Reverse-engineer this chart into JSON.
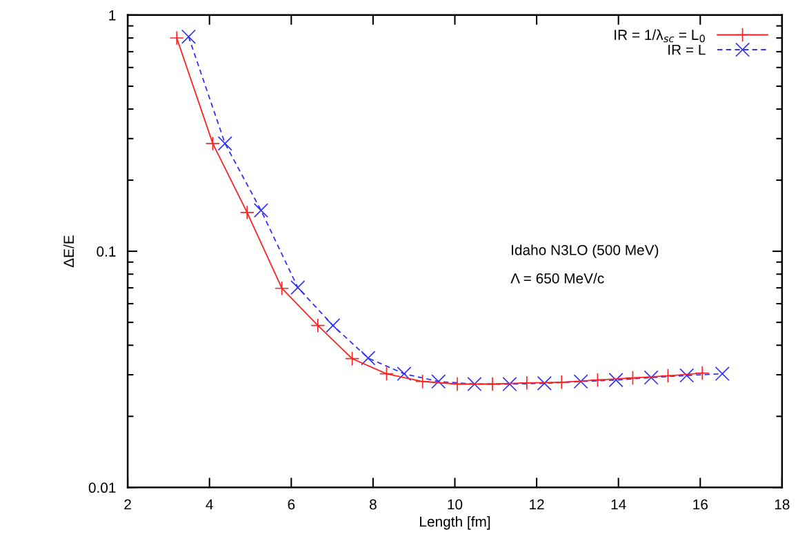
{
  "chart_data": {
    "type": "line",
    "xlabel": "Length [fm]",
    "ylabel": "ΔE/E",
    "annotations": [
      "Idaho N3LO (500 MeV)",
      "Λ = 650 MeV/c"
    ],
    "series": [
      {
        "name": "IR = 1/λ$_{sc}$ = L$_{0}$",
        "color": "#ff2020",
        "marker": "plus",
        "line_style": "solid",
        "x": [
          3.2,
          4.08,
          4.92,
          5.77,
          6.65,
          7.49,
          8.33,
          9.21,
          10.06,
          10.92,
          11.76,
          12.61,
          13.49,
          14.35,
          15.21,
          16.05
        ],
        "values": [
          0.8,
          0.286,
          0.146,
          0.0697,
          0.0485,
          0.0351,
          0.0303,
          0.0281,
          0.0274,
          0.0274,
          0.0277,
          0.0279,
          0.0285,
          0.0291,
          0.0297,
          0.0305
        ]
      },
      {
        "name": "IR = L",
        "color": "#3030ff",
        "marker": "cross",
        "line_style": "dashed",
        "x": [
          3.49,
          4.38,
          5.26,
          6.16,
          7.02,
          7.88,
          8.76,
          9.6,
          10.48,
          11.34,
          12.19,
          13.08,
          13.94,
          14.8,
          15.67,
          16.54
        ],
        "values": [
          0.81,
          0.286,
          0.149,
          0.0702,
          0.0485,
          0.0353,
          0.0303,
          0.0281,
          0.0274,
          0.0274,
          0.0276,
          0.0281,
          0.0285,
          0.0292,
          0.0298,
          0.0303
        ]
      }
    ],
    "log": "y",
    "xlim": [
      2,
      18
    ],
    "xticks": [
      2,
      4,
      6,
      8,
      10,
      12,
      14,
      16,
      18
    ],
    "ylim": [
      0.01,
      1
    ],
    "yticks": [
      0.01,
      0.1,
      1
    ],
    "grid": false,
    "legend": "top right"
  }
}
